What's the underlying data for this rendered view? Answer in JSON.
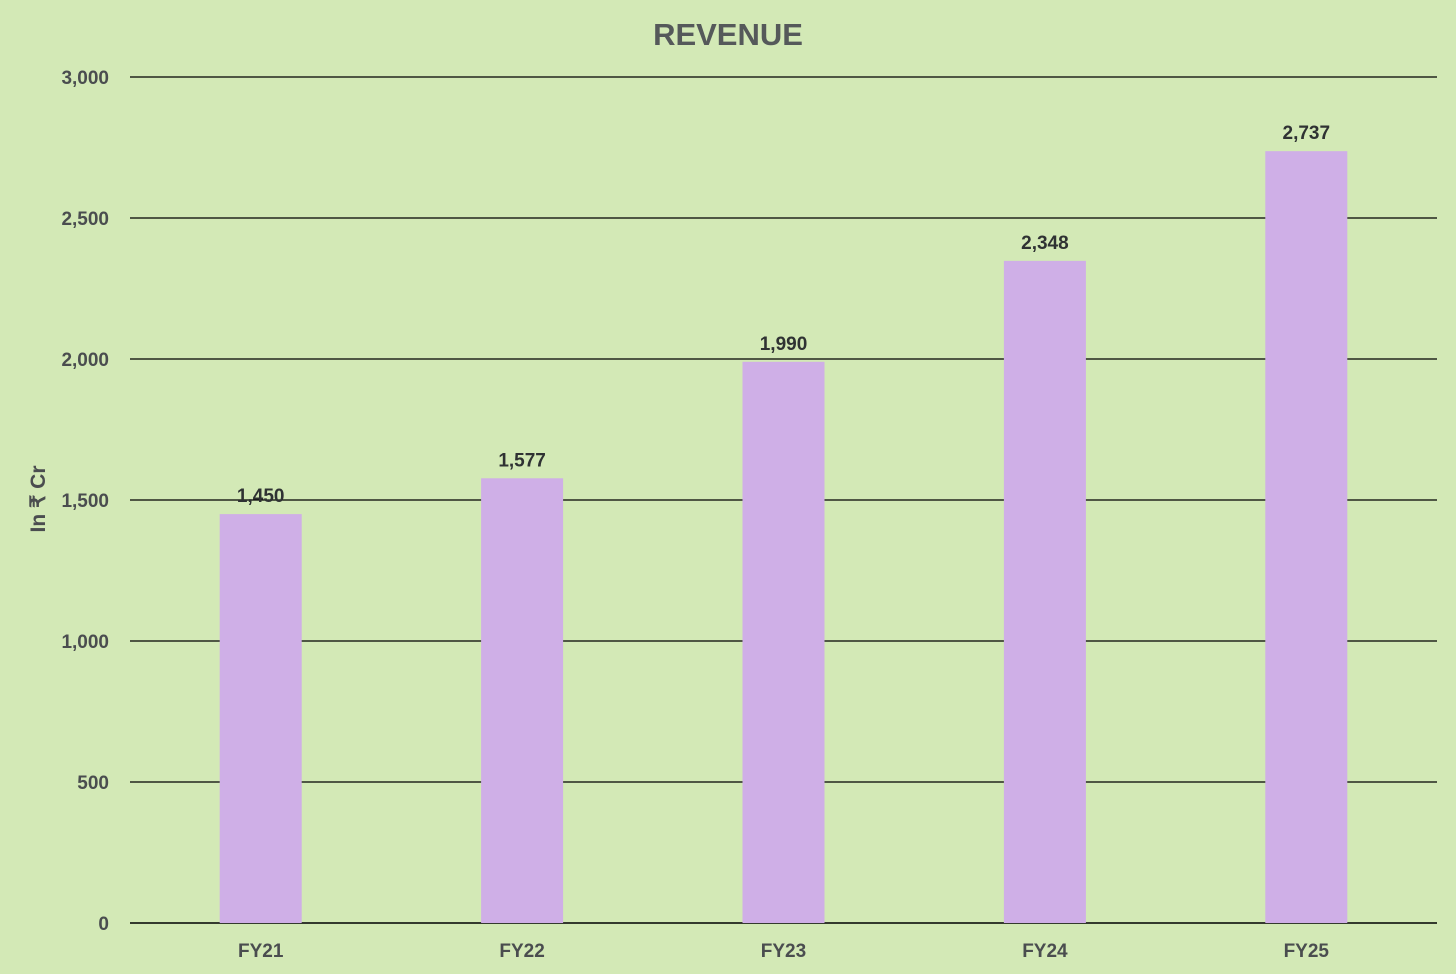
{
  "chart_data": {
    "type": "bar",
    "title": "REVENUE",
    "xlabel": "",
    "ylabel": "In ₹ Cr",
    "categories": [
      "FY21",
      "FY22",
      "FY23",
      "FY24",
      "FY25"
    ],
    "values": [
      1450,
      1577,
      1990,
      2348,
      2737
    ],
    "value_labels": [
      "1,450",
      "1,577",
      "1,990",
      "2,348",
      "2,737"
    ],
    "ylim": [
      0,
      3000
    ],
    "yticks": [
      0,
      500,
      1000,
      1500,
      2000,
      2500,
      3000
    ],
    "ytick_labels": [
      "0",
      "500",
      "1,000",
      "1,500",
      "2,000",
      "2,500",
      "3,000"
    ],
    "grid": true,
    "legend": "none",
    "colors": {
      "background": "#d3e9b6",
      "bar": "#cfafe7",
      "grid": "#000000",
      "title": "#55595a",
      "axis_text": "#4a4d4f",
      "data_label": "#2f3233"
    }
  }
}
